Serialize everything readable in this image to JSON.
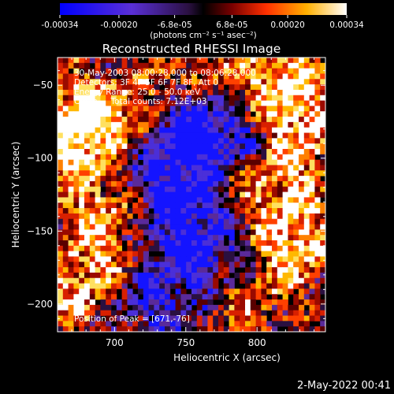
{
  "colorbar": {
    "tick_labels": [
      "-0.00034",
      "-0.00020",
      "-6.8e-05",
      "6.8e-05",
      "0.00020",
      "0.00034"
    ],
    "tick_values": [
      -0.00034,
      -0.0002,
      -6.8e-05,
      6.8e-05,
      0.0002,
      0.00034
    ],
    "range": [
      -0.00034,
      0.00034
    ],
    "units": "(photons cm⁻² s⁻¹ asec⁻²)"
  },
  "chart_data": {
    "type": "heatmap",
    "title": "Reconstructed RHESSI Image",
    "xlabel": "Heliocentric X (arcsec)",
    "ylabel": "Heliocentric Y (arcsec)",
    "xlim": [
      660,
      848
    ],
    "ylim": [
      -219,
      -31
    ],
    "x_ticks": [
      700,
      750,
      800
    ],
    "y_ticks": [
      -50,
      -100,
      -150,
      -200
    ],
    "x_tick_labels": [
      "700",
      "750",
      "800"
    ],
    "y_tick_labels": [
      "−50",
      "−100",
      "−150",
      "−200"
    ],
    "annotations": [
      "30-May-2003 08:00:28.000 to 08:06:28.000",
      "Detectors: 3F 4F 5F 6F 7F 8F, Att 0",
      "Energy Range: 25.0 - 50.0 keV",
      "Clean     Total counts: 7.12E+03"
    ],
    "peak_label": "Position of Peak = [671,-76]",
    "peak_position": [
      671,
      -76
    ]
  },
  "timestamp": "2-May-2022 00:41"
}
